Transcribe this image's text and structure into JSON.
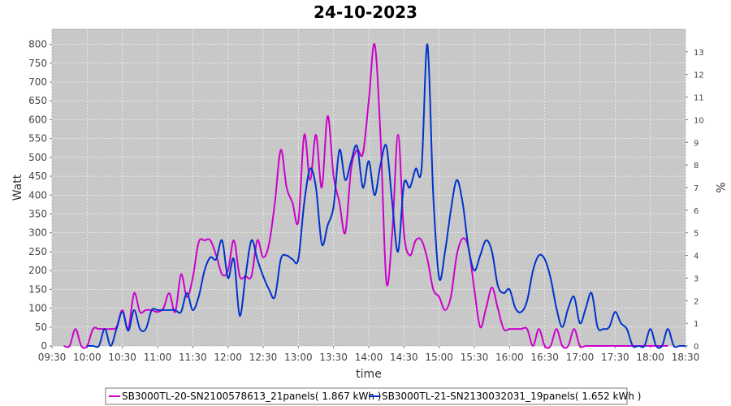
{
  "chart_data": {
    "type": "line",
    "title": "24-10-2023",
    "xlabel": "time",
    "ylabel": "Watt",
    "y2label": "%",
    "xlim": [
      "09:30",
      "18:30"
    ],
    "ylim": [
      0,
      840
    ],
    "y2lim": [
      0,
      14
    ],
    "grid": true,
    "legend_position": "bottom",
    "x_ticks": [
      "09:30",
      "10:00",
      "10:30",
      "11:00",
      "11:30",
      "12:00",
      "12:30",
      "13:00",
      "13:30",
      "14:00",
      "14:30",
      "15:00",
      "15:30",
      "16:00",
      "16:30",
      "17:00",
      "17:30",
      "18:00",
      "18:30"
    ],
    "y_ticks": [
      0,
      50,
      100,
      150,
      200,
      250,
      300,
      350,
      400,
      450,
      500,
      550,
      600,
      650,
      700,
      750,
      800
    ],
    "y2_ticks": [
      0,
      1,
      2,
      3,
      4,
      5,
      6,
      7,
      8,
      9,
      10,
      11,
      12,
      13
    ],
    "series": [
      {
        "name": "SB3000TL-20-SN2100578613_21panels( 1.867 kWh )",
        "color": "#cc00cc",
        "x": [
          "09:40",
          "09:45",
          "09:50",
          "09:55",
          "10:00",
          "10:05",
          "10:10",
          "10:15",
          "10:20",
          "10:25",
          "10:30",
          "10:35",
          "10:40",
          "10:45",
          "10:50",
          "10:55",
          "11:00",
          "11:05",
          "11:10",
          "11:15",
          "11:20",
          "11:25",
          "11:30",
          "11:35",
          "11:40",
          "11:45",
          "11:50",
          "11:55",
          "12:00",
          "12:05",
          "12:10",
          "12:15",
          "12:20",
          "12:25",
          "12:30",
          "12:35",
          "12:40",
          "12:45",
          "12:50",
          "12:55",
          "13:00",
          "13:05",
          "13:10",
          "13:15",
          "13:20",
          "13:25",
          "13:30",
          "13:35",
          "13:40",
          "13:45",
          "13:50",
          "13:55",
          "14:00",
          "14:05",
          "14:10",
          "14:15",
          "14:20",
          "14:25",
          "14:30",
          "14:35",
          "14:40",
          "14:45",
          "14:50",
          "14:55",
          "15:00",
          "15:05",
          "15:10",
          "15:15",
          "15:20",
          "15:25",
          "15:30",
          "15:35",
          "15:40",
          "15:45",
          "15:50",
          "15:55",
          "16:00",
          "16:05",
          "16:10",
          "16:15",
          "16:20",
          "16:25",
          "16:30",
          "16:35",
          "16:40",
          "16:45",
          "16:50",
          "16:55",
          "17:00",
          "17:05",
          "17:10",
          "17:15",
          "17:20",
          "17:25",
          "17:30",
          "17:35",
          "17:40",
          "17:45",
          "17:50",
          "17:55",
          "18:00",
          "18:05",
          "18:10",
          "18:15"
        ],
        "values": [
          0,
          0,
          45,
          0,
          0,
          45,
          45,
          45,
          45,
          50,
          95,
          45,
          140,
          90,
          95,
          95,
          90,
          100,
          140,
          90,
          190,
          130,
          180,
          275,
          280,
          280,
          240,
          190,
          200,
          280,
          185,
          185,
          185,
          280,
          235,
          270,
          380,
          520,
          420,
          380,
          330,
          560,
          440,
          560,
          420,
          610,
          450,
          380,
          300,
          470,
          520,
          510,
          650,
          800,
          560,
          170,
          300,
          560,
          300,
          240,
          280,
          280,
          230,
          150,
          130,
          95,
          130,
          240,
          285,
          260,
          150,
          50,
          100,
          155,
          100,
          45,
          45,
          45,
          45,
          45,
          0,
          45,
          0,
          0,
          45,
          0,
          0,
          45,
          0,
          0,
          0,
          0,
          0,
          0,
          0,
          0,
          0,
          0,
          0,
          0,
          0,
          0,
          0,
          0
        ]
      },
      {
        "name": "SB3000TL-21-SN2130032031_19panels( 1.652 kWh )",
        "color": "#0033cc",
        "x": [
          "10:00",
          "10:05",
          "10:10",
          "10:15",
          "10:20",
          "10:25",
          "10:30",
          "10:35",
          "10:40",
          "10:45",
          "10:50",
          "10:55",
          "11:00",
          "11:05",
          "11:10",
          "11:15",
          "11:20",
          "11:25",
          "11:30",
          "11:35",
          "11:40",
          "11:45",
          "11:50",
          "11:55",
          "12:00",
          "12:05",
          "12:10",
          "12:15",
          "12:20",
          "12:25",
          "12:30",
          "12:35",
          "12:40",
          "12:45",
          "12:50",
          "12:55",
          "13:00",
          "13:05",
          "13:10",
          "13:15",
          "13:20",
          "13:25",
          "13:30",
          "13:35",
          "13:40",
          "13:45",
          "13:50",
          "13:55",
          "14:00",
          "14:05",
          "14:10",
          "14:15",
          "14:20",
          "14:25",
          "14:30",
          "14:35",
          "14:40",
          "14:45",
          "14:50",
          "14:55",
          "15:00",
          "15:05",
          "15:10",
          "15:15",
          "15:20",
          "15:25",
          "15:30",
          "15:35",
          "15:40",
          "15:45",
          "15:50",
          "15:55",
          "16:00",
          "16:05",
          "16:10",
          "16:15",
          "16:20",
          "16:25",
          "16:30",
          "16:35",
          "16:40",
          "16:45",
          "16:50",
          "16:55",
          "17:00",
          "17:05",
          "17:10",
          "17:15",
          "17:20",
          "17:25",
          "17:30",
          "17:35",
          "17:40",
          "17:45",
          "17:50",
          "17:55",
          "18:00",
          "18:05",
          "18:10",
          "18:15",
          "18:20",
          "18:25",
          "18:30"
        ],
        "values": [
          0,
          0,
          0,
          45,
          0,
          45,
          90,
          40,
          95,
          45,
          45,
          95,
          95,
          95,
          95,
          95,
          90,
          140,
          95,
          130,
          200,
          235,
          230,
          280,
          180,
          230,
          80,
          185,
          280,
          230,
          185,
          150,
          130,
          230,
          240,
          230,
          230,
          380,
          470,
          420,
          270,
          320,
          370,
          520,
          440,
          490,
          530,
          420,
          490,
          400,
          480,
          530,
          380,
          250,
          430,
          420,
          470,
          470,
          800,
          400,
          180,
          250,
          360,
          440,
          380,
          260,
          200,
          240,
          280,
          250,
          160,
          140,
          150,
          100,
          90,
          120,
          200,
          240,
          230,
          180,
          100,
          50,
          100,
          130,
          60,
          100,
          140,
          50,
          45,
          50,
          90,
          60,
          45,
          0,
          0,
          0,
          45,
          0,
          0,
          45,
          0,
          0,
          0
        ]
      }
    ]
  },
  "legend": {
    "items": [
      "SB3000TL-20-SN2100578613_21panels( 1.867 kWh )",
      "SB3000TL-21-SN2130032031_19panels( 1.652 kWh )"
    ]
  }
}
